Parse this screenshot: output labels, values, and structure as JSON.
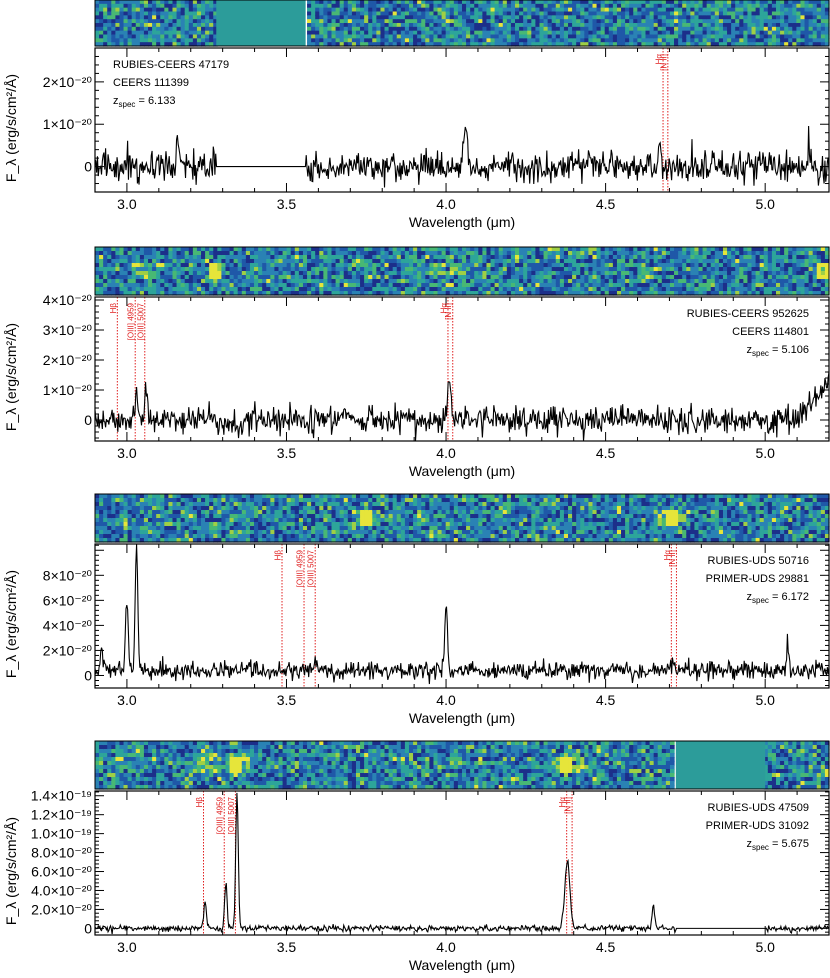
{
  "chart_data": [
    {
      "type": "line",
      "name_lines": [
        "RUBIES-CEERS 47179",
        "CEERS 111399"
      ],
      "z_label": "z",
      "z_sub": "spec",
      "z_value": "6.133",
      "label_side": "left",
      "xlim": [
        2.9,
        5.2
      ],
      "ylim": [
        -6e-21,
        2.8e-20
      ],
      "xticks": [
        3.0,
        3.5,
        4.0,
        4.5,
        5.0
      ],
      "xtick_labels": [
        "3.0",
        "3.5",
        "4.0",
        "4.5",
        "5.0"
      ],
      "yticks": [
        0,
        1e-20,
        2e-20
      ],
      "ytick_labels": [
        "0",
        "1×10⁻²⁰",
        "2×10⁻²⁰"
      ],
      "xlabel": "Wavelength (μm)",
      "ylabel": "F_λ (erg/s/cm²/Å)",
      "noise": 2e-21,
      "gaps": [
        [
          3.28,
          3.56
        ]
      ],
      "emission": [
        {
          "x": 3.16,
          "amp": 6e-21,
          "w": 0.005
        },
        {
          "x": 4.06,
          "amp": 9e-21,
          "w": 0.006
        },
        {
          "x": 4.67,
          "amp": 4e-21,
          "w": 0.006
        },
        {
          "x": 5.14,
          "amp": 5e-21,
          "w": 0.005
        }
      ],
      "line_marks": [
        {
          "x": 4.68,
          "label": "Hα"
        },
        {
          "x": 4.695,
          "label": "[N II]"
        }
      ],
      "spectrum2d": {
        "gaps": [
          [
            3.28,
            3.56
          ]
        ],
        "trace": [],
        "blobs": []
      }
    },
    {
      "type": "line",
      "name_lines": [
        "RUBIES-CEERS 952625",
        "CEERS 114801"
      ],
      "z_label": "z",
      "z_sub": "spec",
      "z_value": "5.106",
      "label_side": "right",
      "xlim": [
        2.9,
        5.2
      ],
      "ylim": [
        -7e-21,
        4.1e-20
      ],
      "xticks": [
        3.0,
        3.5,
        4.0,
        4.5,
        5.0
      ],
      "xtick_labels": [
        "3.0",
        "3.5",
        "4.0",
        "4.5",
        "5.0"
      ],
      "yticks": [
        0,
        1e-20,
        2e-20,
        3e-20,
        4e-20
      ],
      "ytick_labels": [
        "0",
        "1×10⁻²⁰",
        "2×10⁻²⁰",
        "3×10⁻²⁰",
        "4×10⁻²⁰"
      ],
      "xlabel": "Wavelength (μm)",
      "ylabel": "F_λ (erg/s/cm²/Å)",
      "noise": 2.5e-21,
      "gaps": [],
      "emission": [
        {
          "x": 3.03,
          "amp": 8e-21,
          "w": 0.004
        },
        {
          "x": 3.06,
          "amp": 1.2e-20,
          "w": 0.004
        },
        {
          "x": 4.01,
          "amp": 1.3e-20,
          "w": 0.005
        }
      ],
      "rising_edge": {
        "start": 5.05,
        "end": 5.2,
        "amp": 1.3e-20
      },
      "line_marks": [
        {
          "x": 2.97,
          "label": "Hβ"
        },
        {
          "x": 3.026,
          "label": "[OIII] 4959"
        },
        {
          "x": 3.056,
          "label": "[OIII] 5007"
        },
        {
          "x": 4.006,
          "label": "Hα"
        },
        {
          "x": 4.021,
          "label": "[N II]"
        }
      ],
      "spectrum2d": {
        "gaps": [],
        "trace": [
          [
            3.0,
            3.1
          ],
          [
            3.95,
            4.05
          ]
        ],
        "blobs": [
          3.28,
          5.18
        ]
      }
    },
    {
      "type": "line",
      "name_lines": [
        "RUBIES-UDS 50716",
        "PRIMER-UDS 29881"
      ],
      "z_label": "z",
      "z_sub": "spec",
      "z_value": "6.172",
      "label_side": "right",
      "xlim": [
        2.9,
        5.2
      ],
      "ylim": [
        -1e-20,
        1.05e-19
      ],
      "xticks": [
        3.0,
        3.5,
        4.0,
        4.5,
        5.0
      ],
      "xtick_labels": [
        "3.0",
        "3.5",
        "4.0",
        "4.5",
        "5.0"
      ],
      "yticks": [
        0,
        2e-20,
        4e-20,
        6e-20,
        8e-20
      ],
      "ytick_labels": [
        "0",
        "2×10⁻²⁰",
        "4×10⁻²⁰",
        "6×10⁻²⁰",
        "8×10⁻²⁰"
      ],
      "xlabel": "Wavelength (μm)",
      "ylabel": "F_λ (erg/s/cm²/Å)",
      "noise": 4e-21,
      "baseline": 4e-21,
      "gaps": [],
      "emission": [
        {
          "x": 2.92,
          "amp": 2.5e-20,
          "w": 0.003
        },
        {
          "x": 3.0,
          "amp": 5.8e-20,
          "w": 0.004
        },
        {
          "x": 3.03,
          "amp": 9.8e-20,
          "w": 0.004
        },
        {
          "x": 3.59,
          "amp": 1e-20,
          "w": 0.004
        },
        {
          "x": 4.0,
          "amp": 5.6e-20,
          "w": 0.004
        },
        {
          "x": 4.71,
          "amp": 8e-21,
          "w": 0.004
        },
        {
          "x": 5.07,
          "amp": 2.6e-20,
          "w": 0.003
        }
      ],
      "line_marks": [
        {
          "x": 3.486,
          "label": "Hβ"
        },
        {
          "x": 3.555,
          "label": "[OIII] 4959"
        },
        {
          "x": 3.59,
          "label": "[OIII] 5007"
        },
        {
          "x": 4.706,
          "label": "Hα"
        },
        {
          "x": 4.722,
          "label": "[N II]"
        }
      ],
      "spectrum2d": {
        "gaps": [],
        "trace": [
          [
            3.7,
            3.8
          ],
          [
            4.65,
            4.75
          ]
        ],
        "blobs": [
          3.75,
          4.71
        ]
      }
    },
    {
      "type": "line",
      "name_lines": [
        "RUBIES-UDS 47509",
        "PRIMER-UDS 31092"
      ],
      "z_label": "z",
      "z_sub": "spec",
      "z_value": "5.675",
      "label_side": "right",
      "xlim": [
        2.9,
        5.2
      ],
      "ylim": [
        -7e-21,
        1.45e-19
      ],
      "xticks": [
        3.0,
        3.5,
        4.0,
        4.5,
        5.0
      ],
      "xtick_labels": [
        "3.0",
        "3.5",
        "4.0",
        "4.5",
        "5.0"
      ],
      "yticks": [
        0,
        2e-20,
        4e-20,
        6e-20,
        8e-20,
        1e-19,
        1.2e-19,
        1.4e-19
      ],
      "ytick_labels": [
        "0",
        "2.0×10⁻²⁰",
        "4.0×10⁻²⁰",
        "6.0×10⁻²⁰",
        "8.0×10⁻²⁰",
        "1.0×10⁻¹⁹",
        "1.2×10⁻¹⁹",
        "1.4×10⁻¹⁹"
      ],
      "xlabel": "Wavelength (μm)",
      "ylabel": "F_λ (erg/s/cm²/Å)",
      "noise": 1.8e-21,
      "gaps": [
        [
          4.72,
          5.0
        ]
      ],
      "emission": [
        {
          "x": 3.245,
          "amp": 2.8e-20,
          "w": 0.004
        },
        {
          "x": 3.31,
          "amp": 4.8e-20,
          "w": 0.004
        },
        {
          "x": 3.345,
          "amp": 1.42e-19,
          "w": 0.004
        },
        {
          "x": 4.38,
          "amp": 7e-20,
          "w": 0.008
        },
        {
          "x": 4.65,
          "amp": 2.6e-20,
          "w": 0.004
        }
      ],
      "line_marks": [
        {
          "x": 3.24,
          "label": "Hβ"
        },
        {
          "x": 3.305,
          "label": "[OIII] 4959"
        },
        {
          "x": 3.34,
          "label": "[OIII] 5007"
        },
        {
          "x": 4.378,
          "label": "Hα"
        },
        {
          "x": 4.395,
          "label": "[N II]"
        }
      ],
      "spectrum2d": {
        "gaps": [
          [
            4.72,
            5.0
          ]
        ],
        "trace": [
          [
            3.2,
            3.4
          ],
          [
            4.33,
            4.43
          ]
        ],
        "blobs": [
          4.38,
          3.34
        ]
      }
    }
  ]
}
